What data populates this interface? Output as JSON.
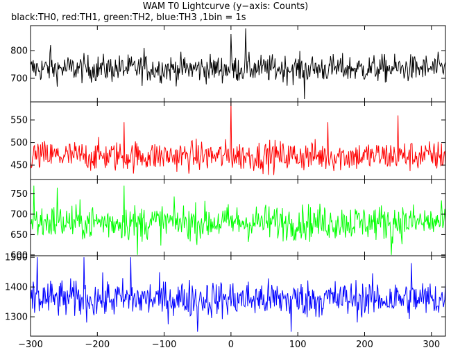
{
  "title": "WAM T0 Lightcurve (y−axis: Counts)",
  "subtitle": "black:TH0, red:TH1, green:TH2, blue:TH3 ,1bin = 1s",
  "chart_data": {
    "type": "line",
    "x_range": [
      -300,
      321
    ],
    "x_ticks": [
      -300,
      -200,
      -100,
      0,
      100,
      200,
      300
    ],
    "series": [
      {
        "color": "#000000",
        "ylim": [
          615,
          890
        ],
        "y_ticks": [
          700,
          800
        ],
        "base": 735,
        "noise": 25,
        "spikes": [
          {
            "x": 0,
            "value": 860
          },
          {
            "x": 22,
            "value": 880
          },
          {
            "x": 110,
            "value": 625
          },
          {
            "x": -270,
            "value": 820
          },
          {
            "x": -130,
            "value": 810
          }
        ]
      },
      {
        "color": "#ff0000",
        "ylim": [
          418,
          590
        ],
        "y_ticks": [
          450,
          500,
          550
        ],
        "base": 470,
        "noise": 17,
        "spikes": [
          {
            "x": 0,
            "value": 590
          },
          {
            "x": 250,
            "value": 560
          },
          {
            "x": -160,
            "value": 545
          },
          {
            "x": 145,
            "value": 545
          }
        ]
      },
      {
        "color": "#00ff00",
        "ylim": [
          598,
          785
        ],
        "y_ticks": [
          600,
          650,
          700,
          750
        ],
        "base": 680,
        "noise": 22,
        "spikes": [
          {
            "x": -295,
            "value": 770
          },
          {
            "x": -260,
            "value": 765
          },
          {
            "x": -160,
            "value": 770
          },
          {
            "x": -140,
            "value": 600
          },
          {
            "x": 240,
            "value": 600
          }
        ]
      },
      {
        "color": "#0000ff",
        "ylim": [
          1235,
          1505
        ],
        "y_ticks": [
          1300,
          1400,
          1500
        ],
        "base": 1360,
        "noise": 32,
        "spikes": [
          {
            "x": -290,
            "value": 1500
          },
          {
            "x": -220,
            "value": 1500
          },
          {
            "x": -150,
            "value": 1500
          },
          {
            "x": -50,
            "value": 1250
          },
          {
            "x": 90,
            "value": 1250
          },
          {
            "x": 270,
            "value": 1480
          }
        ]
      }
    ]
  }
}
